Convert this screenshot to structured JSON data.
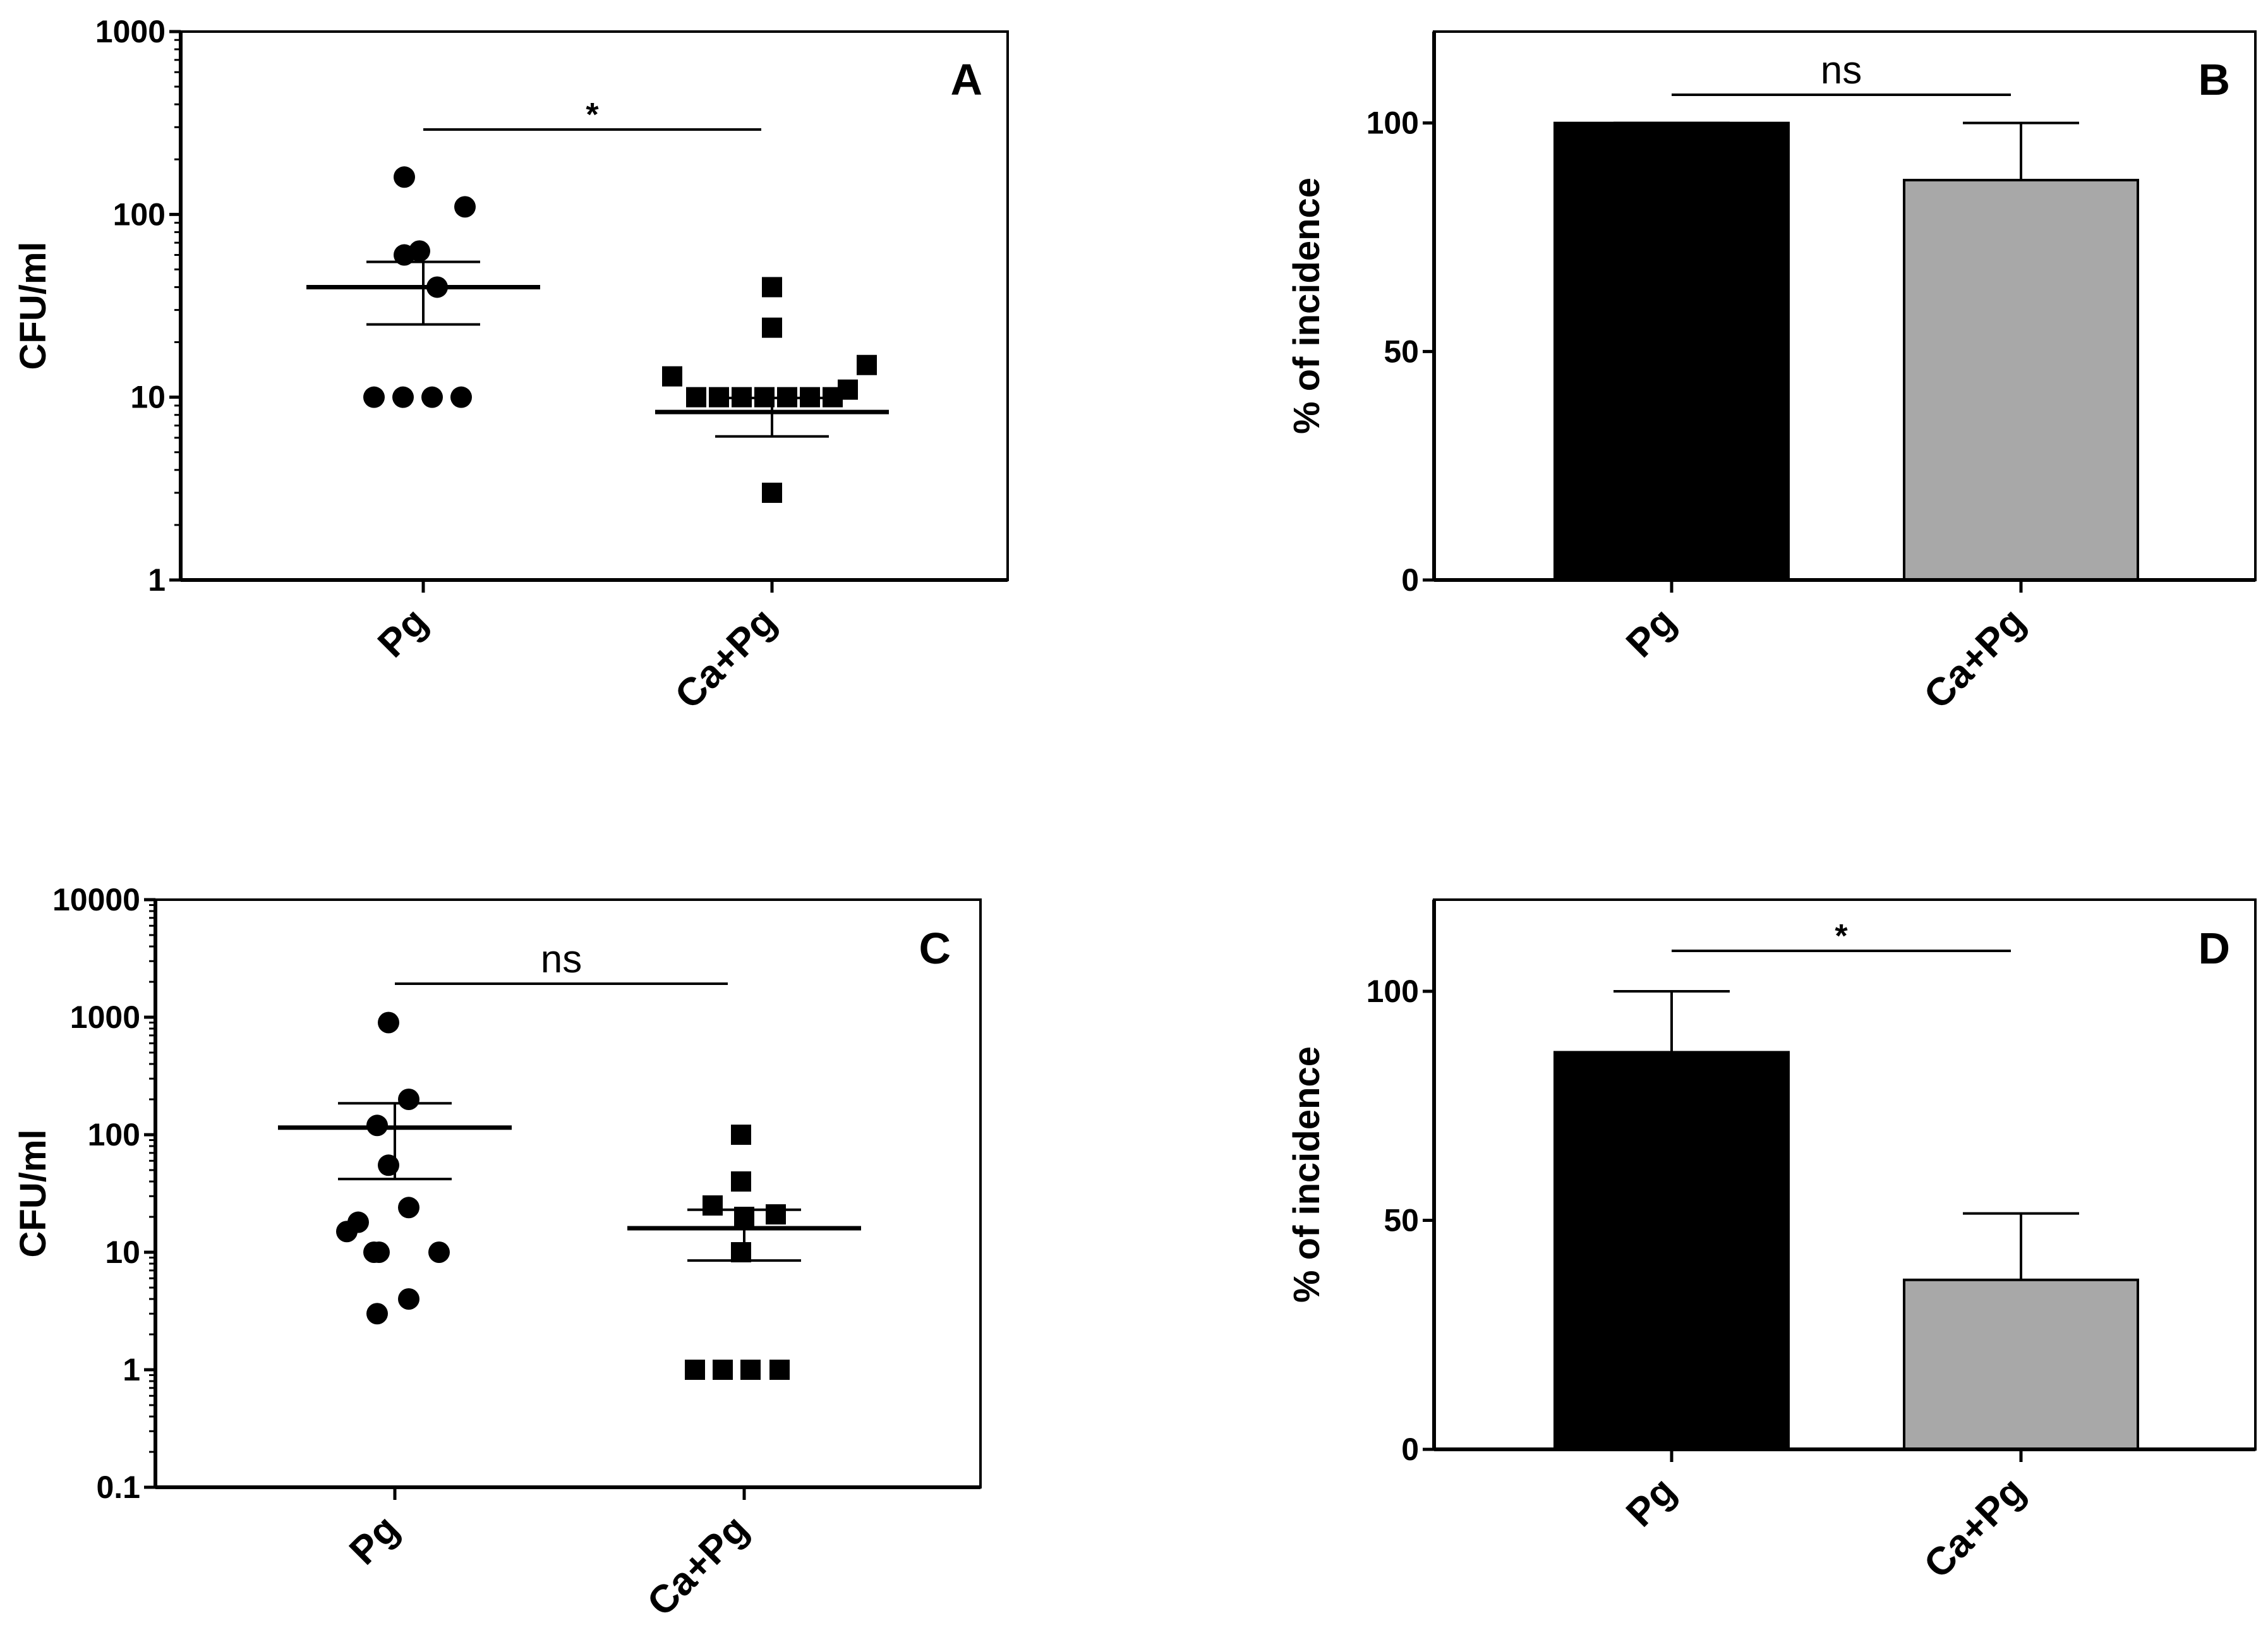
{
  "chart_data": [
    {
      "panel": "A",
      "type": "scatter",
      "yscale": "log",
      "ylabel": "CFU/ml",
      "ylim": [
        1,
        1000
      ],
      "yticks": [
        1,
        10,
        100,
        1000
      ],
      "ytick_labels": [
        "1",
        "10",
        "100",
        "1000"
      ],
      "categories": [
        "Pg",
        "Ca+Pg"
      ],
      "series": [
        {
          "name": "Pg",
          "marker": "circle",
          "values": [
            160,
            110,
            60,
            63,
            40,
            10,
            10,
            10,
            10
          ],
          "mean": 40,
          "sem_low": 25,
          "sem_high": 55
        },
        {
          "name": "Ca+Pg",
          "marker": "square",
          "values": [
            40,
            24,
            13,
            15,
            11,
            10,
            10,
            10,
            10,
            10,
            10,
            10,
            3
          ],
          "mean": 8.3,
          "sem_low": 6.1,
          "sem_high": 9.9
        }
      ],
      "significance": "*"
    },
    {
      "panel": "B",
      "type": "bar",
      "ylabel": "% of incidence",
      "ylim": [
        0,
        120
      ],
      "yticks": [
        0,
        50,
        100
      ],
      "ytick_labels": [
        "0",
        "50",
        "100"
      ],
      "categories": [
        "Pg",
        "Ca+Pg"
      ],
      "values": [
        100,
        87.5
      ],
      "errors": [
        0,
        12.5
      ],
      "colors": [
        "#000000",
        "#a8a8a8"
      ],
      "significance": "ns"
    },
    {
      "panel": "C",
      "type": "scatter",
      "yscale": "log",
      "ylabel": "CFU/ml",
      "ylim": [
        0.1,
        10000
      ],
      "yticks": [
        0.1,
        1,
        10,
        100,
        1000,
        10000
      ],
      "ytick_labels": [
        "0.1",
        "1",
        "10",
        "100",
        "1000",
        "10000"
      ],
      "categories": [
        "Pg",
        "Ca+Pg"
      ],
      "series": [
        {
          "name": "Pg",
          "marker": "circle",
          "values": [
            900,
            200,
            120,
            55,
            24,
            18,
            15,
            10,
            10,
            10,
            4,
            3
          ],
          "mean": 115,
          "sem_low": 42,
          "sem_high": 185
        },
        {
          "name": "Ca+Pg",
          "marker": "square",
          "values": [
            100,
            40,
            25,
            20,
            21,
            10,
            1,
            1,
            1,
            1
          ],
          "mean": 16,
          "sem_low": 8.5,
          "sem_high": 23
        }
      ],
      "significance": "ns"
    },
    {
      "panel": "D",
      "type": "bar",
      "ylabel": "% of incidence",
      "ylim": [
        0,
        120
      ],
      "yticks": [
        0,
        50,
        100
      ],
      "ytick_labels": [
        "0",
        "50",
        "100"
      ],
      "categories": [
        "Pg",
        "Ca+Pg"
      ],
      "values": [
        86.7,
        37
      ],
      "errors": [
        13.3,
        14.5
      ],
      "colors": [
        "#000000",
        "#a8a8a8"
      ],
      "significance": "*"
    }
  ]
}
